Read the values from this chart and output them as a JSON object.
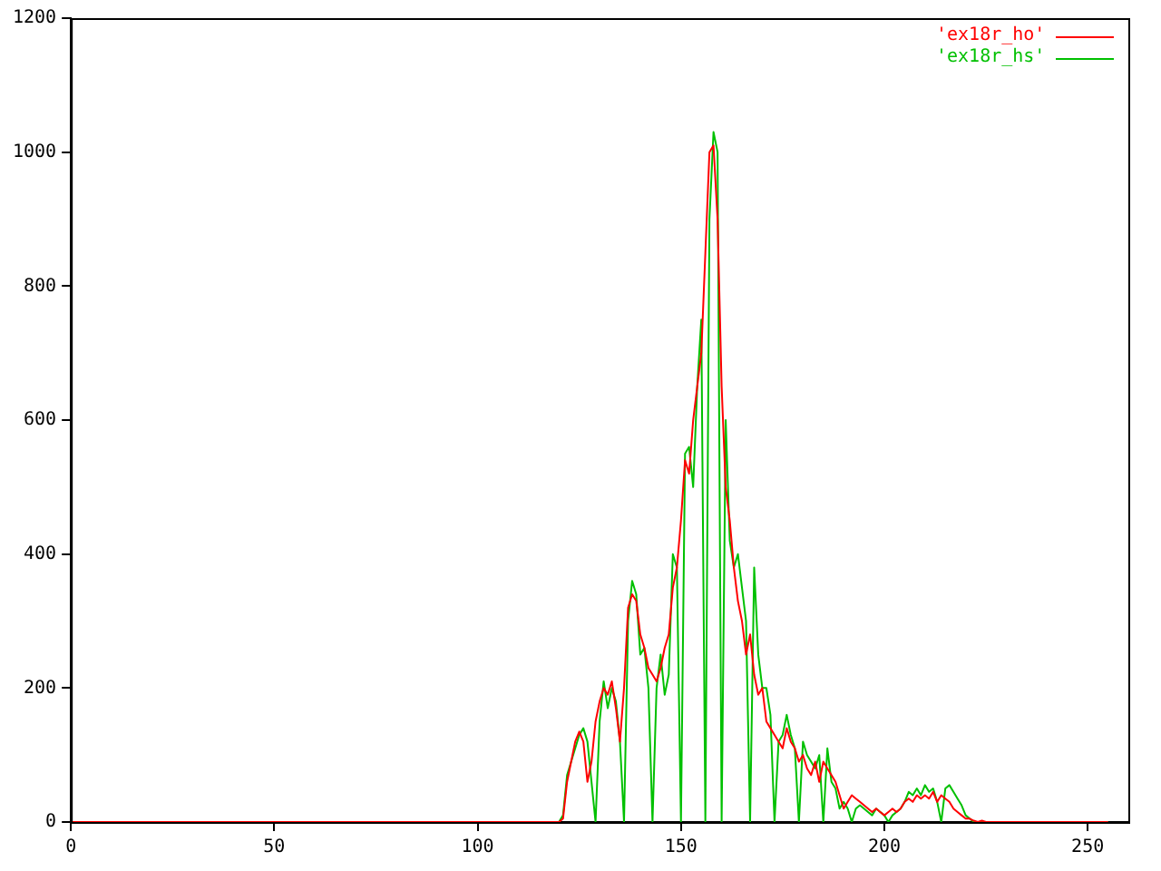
{
  "chart_data": {
    "type": "line",
    "xlim": [
      0,
      260
    ],
    "xticks": [
      0,
      50,
      100,
      150,
      200,
      250
    ],
    "ylim": [
      0,
      1200
    ],
    "yticks": [
      0,
      200,
      400,
      600,
      800,
      1000,
      1200
    ],
    "grid": false,
    "legend": "top right",
    "marker": "none",
    "line_style": "solid",
    "series": [
      {
        "name": "'ex18r_ho'",
        "color": "#ff0000",
        "x": [
          0,
          118,
          119,
          120,
          121,
          122,
          123,
          124,
          125,
          126,
          127,
          128,
          129,
          130,
          131,
          132,
          133,
          134,
          135,
          136,
          137,
          138,
          139,
          140,
          141,
          142,
          143,
          144,
          145,
          146,
          147,
          148,
          149,
          150,
          151,
          152,
          153,
          154,
          155,
          156,
          157,
          158,
          159,
          160,
          161,
          162,
          163,
          164,
          165,
          166,
          167,
          168,
          169,
          170,
          171,
          172,
          173,
          174,
          175,
          176,
          177,
          178,
          179,
          180,
          181,
          182,
          183,
          184,
          185,
          186,
          187,
          188,
          189,
          190,
          191,
          192,
          193,
          194,
          195,
          196,
          197,
          198,
          199,
          200,
          201,
          202,
          203,
          204,
          205,
          206,
          207,
          208,
          209,
          210,
          211,
          212,
          213,
          214,
          215,
          216,
          217,
          218,
          219,
          220,
          221,
          222,
          223,
          224,
          225,
          255
        ],
        "values": [
          0,
          0,
          0,
          0,
          5,
          60,
          90,
          120,
          135,
          120,
          60,
          90,
          150,
          180,
          200,
          190,
          210,
          170,
          120,
          200,
          320,
          340,
          330,
          280,
          260,
          230,
          220,
          210,
          230,
          260,
          280,
          350,
          380,
          450,
          540,
          520,
          600,
          650,
          700,
          850,
          1000,
          1010,
          900,
          650,
          500,
          450,
          380,
          330,
          300,
          250,
          280,
          220,
          190,
          200,
          150,
          140,
          130,
          120,
          110,
          140,
          120,
          110,
          90,
          100,
          80,
          70,
          90,
          60,
          90,
          80,
          70,
          60,
          40,
          20,
          30,
          40,
          35,
          30,
          25,
          20,
          15,
          20,
          15,
          10,
          15,
          20,
          15,
          20,
          30,
          35,
          30,
          40,
          35,
          40,
          35,
          45,
          30,
          40,
          35,
          30,
          20,
          15,
          10,
          5,
          5,
          2,
          0,
          2,
          0,
          0
        ]
      },
      {
        "name": "'ex18r_hs'",
        "color": "#00c000",
        "x": [
          0,
          120,
          121,
          122,
          123,
          124,
          125,
          126,
          127,
          128,
          129,
          130,
          131,
          132,
          133,
          134,
          135,
          136,
          137,
          138,
          139,
          140,
          141,
          142,
          143,
          144,
          145,
          146,
          147,
          148,
          149,
          150,
          151,
          152,
          153,
          154,
          155,
          156,
          157,
          158,
          159,
          160,
          161,
          162,
          163,
          164,
          165,
          166,
          167,
          168,
          169,
          170,
          171,
          172,
          173,
          174,
          175,
          176,
          177,
          178,
          179,
          180,
          181,
          182,
          183,
          184,
          185,
          186,
          187,
          188,
          189,
          190,
          191,
          192,
          193,
          194,
          195,
          196,
          197,
          198,
          199,
          200,
          201,
          202,
          203,
          204,
          205,
          206,
          207,
          208,
          209,
          210,
          211,
          212,
          213,
          214,
          215,
          216,
          217,
          218,
          219,
          220,
          221,
          222,
          255
        ],
        "values": [
          0,
          0,
          10,
          70,
          90,
          110,
          130,
          140,
          120,
          60,
          0,
          150,
          210,
          170,
          200,
          180,
          120,
          0,
          300,
          360,
          340,
          250,
          260,
          200,
          0,
          200,
          250,
          190,
          220,
          400,
          380,
          0,
          550,
          560,
          500,
          650,
          750,
          0,
          900,
          1030,
          1000,
          0,
          600,
          420,
          380,
          400,
          350,
          300,
          0,
          380,
          250,
          200,
          200,
          160,
          0,
          120,
          130,
          160,
          130,
          110,
          0,
          120,
          100,
          90,
          80,
          100,
          0,
          110,
          60,
          50,
          20,
          30,
          20,
          0,
          20,
          25,
          20,
          15,
          10,
          20,
          15,
          10,
          0,
          10,
          15,
          20,
          30,
          45,
          40,
          50,
          40,
          55,
          45,
          50,
          30,
          0,
          50,
          55,
          45,
          35,
          25,
          10,
          5,
          0,
          0
        ]
      }
    ]
  }
}
